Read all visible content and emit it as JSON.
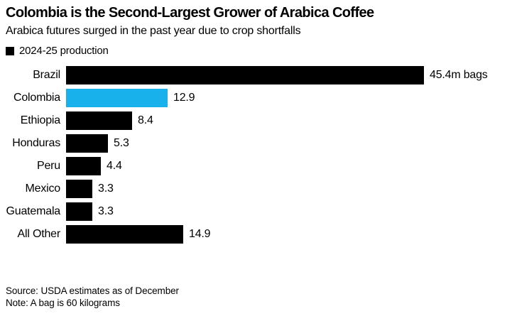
{
  "header": {
    "title": "Colombia is the Second-Largest Grower of Arabica Coffee",
    "subtitle": "Arabica futures surged in the past year due to crop shortfalls"
  },
  "legend": {
    "label": "2024-25 production",
    "swatch_color": "#000000"
  },
  "chart_data": {
    "type": "bar",
    "orientation": "horizontal",
    "title": "Colombia is the Second-Largest Grower of Arabica Coffee",
    "series_name": "2024-25 production",
    "categories": [
      "Brazil",
      "Colombia",
      "Ethiopia",
      "Honduras",
      "Peru",
      "Mexico",
      "Guatemala",
      "All Other"
    ],
    "values": [
      45.4,
      12.9,
      8.4,
      5.3,
      4.4,
      3.3,
      3.3,
      14.9
    ],
    "value_labels": [
      "45.4m bags",
      "12.9",
      "8.4",
      "5.3",
      "4.4",
      "3.3",
      "3.3",
      "14.9"
    ],
    "unit": "m bags (a bag is 60 kilograms)",
    "xlim": [
      0,
      45.4
    ],
    "grid": false,
    "legend_position": "top-left",
    "bar_colors": [
      "#000000",
      "#18b1ec",
      "#000000",
      "#000000",
      "#000000",
      "#000000",
      "#000000",
      "#000000"
    ],
    "highlight": {
      "category": "Colombia",
      "color": "#18b1ec"
    }
  },
  "footer": {
    "source": "Source: USDA estimates as of December",
    "note": "Note: A bag is 60 kilograms"
  },
  "colors": {
    "background": "#ffffff",
    "text": "#000000",
    "bar_default": "#000000",
    "bar_highlight": "#18b1ec"
  }
}
